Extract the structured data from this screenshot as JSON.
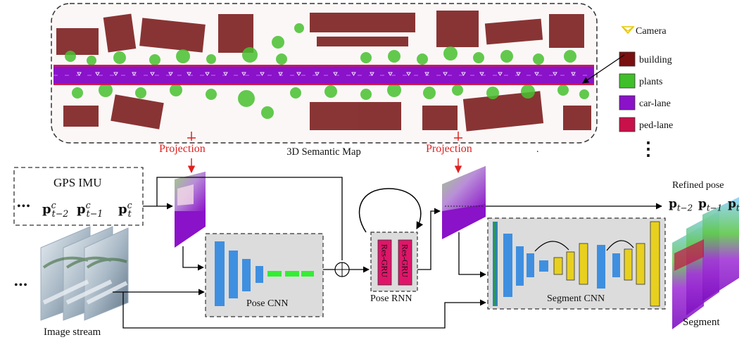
{
  "map": {
    "title": "3D Semantic Map",
    "dot": "."
  },
  "legend": {
    "camera": "Camera",
    "items": [
      {
        "label": "building",
        "color": "#7a0f0f"
      },
      {
        "label": "plants",
        "color": "#3fbf2a"
      },
      {
        "label": "car-lane",
        "color": "#8a12c8"
      },
      {
        "label": "ped-lane",
        "color": "#c8104a"
      }
    ],
    "more": "⋮"
  },
  "labels": {
    "projection_left": "Projection",
    "projection_right": "Projection",
    "gps_imu": "GPS IMU",
    "ellipsis": "•••",
    "image_stream": "Image stream",
    "pose_cnn": "Pose CNN",
    "pose_rnn": "Pose RNN",
    "res_gru": "Res-GRU",
    "segment_cnn": "Segment CNN",
    "refined_pose": "Refined pose",
    "segment": "Segment"
  },
  "math": {
    "p_t2_c": {
      "base": "p",
      "sub": "t−2",
      "sup": "c"
    },
    "p_t1_c": {
      "base": "p",
      "sub": "t−1",
      "sup": "c"
    },
    "p_t_c": {
      "base": "p",
      "sub": "t",
      "sup": "c"
    },
    "p_t2": {
      "base": "p",
      "sub": "t−2"
    },
    "p_t1": {
      "base": "p",
      "sub": "t−1"
    },
    "p_t": {
      "base": "p",
      "sub": "t"
    }
  },
  "colors": {
    "building": "#7a0f0f",
    "plants": "#3fbf2a",
    "car_lane": "#8a12c8",
    "ped_lane": "#c8104a",
    "projection_arrow": "#e02020",
    "cnn_blue": "#3f8fe0",
    "cnn_green": "#33ee33",
    "cnn_yellow": "#e8d020",
    "gru_pink": "#e0156a",
    "panel_gray": "#dcdcdc"
  }
}
